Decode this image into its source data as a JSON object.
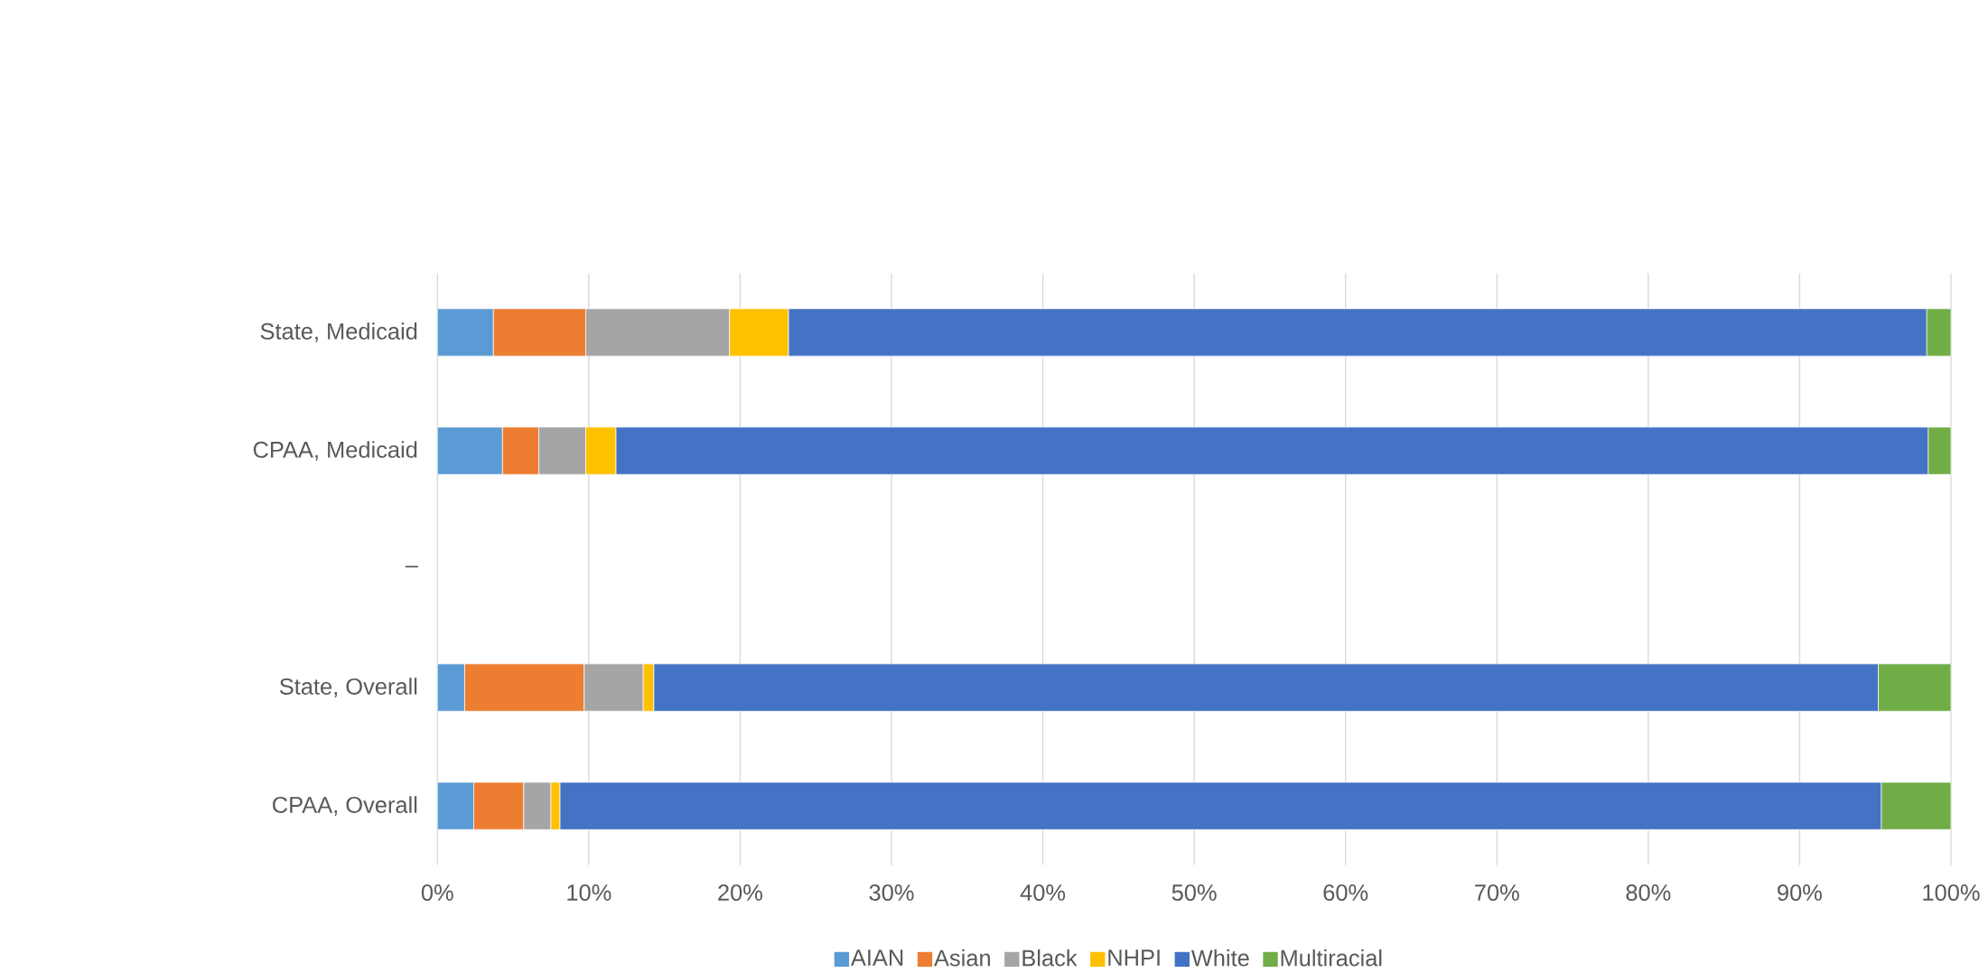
{
  "chart_data": {
    "type": "bar",
    "orientation": "horizontal",
    "stacked": true,
    "categories": [
      "State, Medicaid",
      "CPAA, Medicaid",
      "–",
      "State, Overall",
      "CPAA, Overall"
    ],
    "series": [
      {
        "name": "AIAN",
        "color": "#5b9bd5",
        "values": [
          3.7,
          4.3,
          null,
          1.8,
          2.4
        ]
      },
      {
        "name": "Asian",
        "color": "#ed7d31",
        "values": [
          6.1,
          2.4,
          null,
          7.9,
          3.3
        ]
      },
      {
        "name": "Black",
        "color": "#a5a5a5",
        "values": [
          9.5,
          3.1,
          null,
          3.9,
          1.8
        ]
      },
      {
        "name": "NHPI",
        "color": "#ffc000",
        "values": [
          3.9,
          2.0,
          null,
          0.7,
          0.6
        ]
      },
      {
        "name": "White",
        "color": "#4472c4",
        "values": [
          75.2,
          86.7,
          null,
          80.9,
          87.3
        ]
      },
      {
        "name": "Multiracial",
        "color": "#70ad47",
        "values": [
          1.6,
          1.5,
          null,
          4.8,
          4.6
        ]
      }
    ],
    "xlim": [
      0,
      100
    ],
    "xticks": [
      {
        "value": 0,
        "label": "0%"
      },
      {
        "value": 10,
        "label": "10%"
      },
      {
        "value": 20,
        "label": "20%"
      },
      {
        "value": 30,
        "label": "30%"
      },
      {
        "value": 40,
        "label": "40%"
      },
      {
        "value": 50,
        "label": "50%"
      },
      {
        "value": 60,
        "label": "60%"
      },
      {
        "value": 70,
        "label": "70%"
      },
      {
        "value": 80,
        "label": "80%"
      },
      {
        "value": 90,
        "label": "90%"
      },
      {
        "value": 100,
        "label": "100%"
      }
    ],
    "grid": "x",
    "legend": "bottom"
  }
}
